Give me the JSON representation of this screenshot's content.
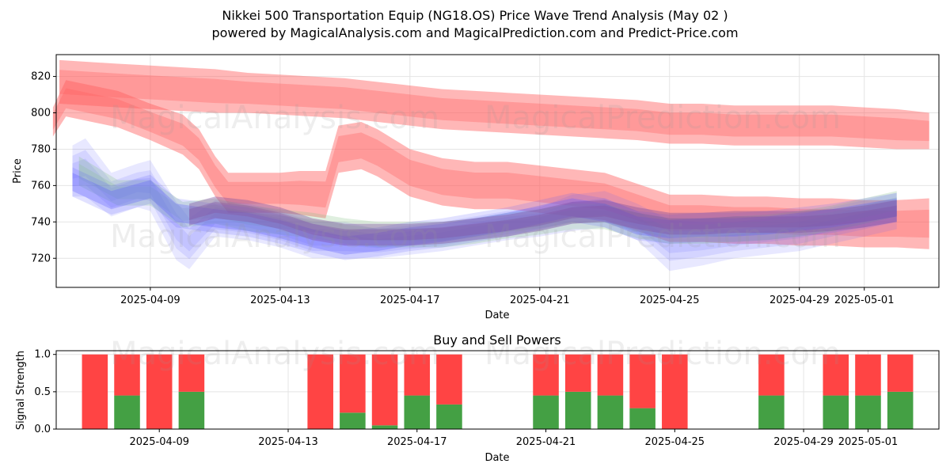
{
  "title_line1": "Nikkei 500 Transportation Equip (NG18.OS) Price Wave Trend Analysis (May 02 )",
  "title_line2": "powered by MagicalAnalysis.com and MagicalPrediction.com and Predict-Price.com",
  "watermarks": [
    "MagicalAnalysis.com",
    "MagicalPrediction.com"
  ],
  "colors": {
    "sell": "#ff4444",
    "buy": "#44a044",
    "blue_band": "#5a5aff",
    "red_band": "#ff6060",
    "green_band": "#7fbf7f",
    "purple_line": "#8050a0"
  },
  "chart_data": [
    {
      "type": "area",
      "title": "",
      "xlabel": "Date",
      "ylabel": "Price",
      "x_range_days": [
        -2.9,
        24.3
      ],
      "x_origin_date": "2025-04-09",
      "ylim": [
        704,
        832
      ],
      "grid": true,
      "x_ticks": [
        {
          "day": 0,
          "label": "2025-04-09"
        },
        {
          "day": 4,
          "label": "2025-04-13"
        },
        {
          "day": 8,
          "label": "2025-04-17"
        },
        {
          "day": 12,
          "label": "2025-04-21"
        },
        {
          "day": 16,
          "label": "2025-04-25"
        },
        {
          "day": 20,
          "label": "2025-04-29"
        },
        {
          "day": 22,
          "label": "2025-05-01"
        }
      ],
      "y_ticks": [
        720,
        740,
        760,
        780,
        800,
        820
      ],
      "red_bands": [
        {
          "name": "upper red band",
          "x": [
            -2.8,
            -1,
            0,
            1,
            2,
            3,
            4,
            5,
            6,
            7,
            8,
            9,
            10,
            11,
            12,
            13,
            14,
            15,
            16,
            17,
            18,
            19,
            20,
            21,
            22,
            23,
            24
          ],
          "center": [
            817,
            815,
            814,
            813,
            812,
            811,
            810,
            809,
            808,
            806,
            804,
            802,
            801,
            800,
            799,
            798,
            797,
            796,
            794,
            794,
            793,
            793,
            793,
            793,
            792,
            791,
            790
          ],
          "half_width": [
            12,
            12,
            12,
            12,
            12,
            11,
            11,
            11,
            11,
            11,
            11,
            11,
            11,
            11,
            11,
            11,
            11,
            11,
            11,
            11,
            11,
            11,
            11,
            11,
            11,
            11,
            10
          ]
        },
        {
          "name": "lower red band",
          "x": [
            -3,
            -2.6,
            -1,
            0,
            1,
            1.5,
            2,
            2.4,
            4,
            4.6,
            5.4,
            5.8,
            6.5,
            7,
            8,
            9,
            10,
            11,
            12,
            13,
            14,
            15,
            16,
            17,
            18,
            19,
            20,
            21,
            22,
            23,
            24
          ],
          "center": [
            795,
            808,
            802,
            795,
            788,
            780,
            765,
            756,
            756,
            756,
            755,
            780,
            782,
            778,
            767,
            762,
            760,
            760,
            758,
            756,
            754,
            748,
            742,
            742,
            741,
            741,
            740,
            740,
            739,
            739,
            739
          ],
          "half_width": [
            8,
            10,
            10,
            10,
            11,
            11,
            11,
            11,
            11,
            12,
            13,
            13,
            13,
            13,
            13,
            13,
            13,
            13,
            13,
            13,
            13,
            13,
            13,
            13,
            13,
            13,
            13,
            13,
            13,
            13,
            14
          ]
        }
      ],
      "blue_bands": [
        {
          "name": "wide blue band",
          "x": [
            -2.4,
            -2,
            -1.2,
            -0.4,
            0,
            0.8,
            1.2,
            2,
            3,
            4,
            5,
            6,
            7,
            8,
            9,
            10,
            11,
            12,
            13,
            14,
            15,
            16,
            17,
            18,
            19,
            20,
            21,
            22,
            23
          ],
          "center": [
            768,
            770,
            755,
            760,
            760,
            735,
            728,
            742,
            740,
            736,
            730,
            730,
            728,
            730,
            732,
            735,
            738,
            740,
            745,
            747,
            740,
            727,
            728,
            730,
            732,
            734,
            738,
            742,
            746
          ],
          "half_width": [
            14,
            16,
            12,
            12,
            14,
            16,
            14,
            10,
            10,
            10,
            10,
            10,
            8,
            8,
            8,
            8,
            8,
            8,
            10,
            10,
            10,
            14,
            12,
            10,
            10,
            10,
            10,
            10,
            10
          ]
        },
        {
          "name": "narrow blue line",
          "x": [
            -2.4,
            -1.2,
            0,
            0.8,
            2,
            3,
            4,
            5,
            6,
            7,
            8,
            9,
            10,
            11,
            12,
            13,
            14,
            15,
            16,
            17,
            18,
            19,
            20,
            21,
            22,
            23
          ],
          "center": [
            762,
            752,
            758,
            745,
            742,
            740,
            736,
            731,
            727,
            729,
            732,
            734,
            737,
            740,
            744,
            748,
            745,
            738,
            736,
            737,
            737,
            738,
            740,
            742,
            745,
            748
          ],
          "half_width": [
            5,
            5,
            5,
            5,
            5,
            5,
            5,
            5,
            5,
            5,
            5,
            5,
            5,
            5,
            5,
            5,
            5,
            5,
            5,
            5,
            5,
            5,
            5,
            5,
            5,
            5
          ]
        }
      ],
      "green_band": {
        "x": [
          -2.2,
          -1,
          0,
          1,
          2,
          3,
          4,
          5,
          6,
          7,
          8,
          9,
          10,
          11,
          12,
          13,
          14,
          15,
          16,
          17,
          18,
          19,
          20,
          21,
          22,
          23
        ],
        "center": [
          768,
          756,
          756,
          744,
          746,
          742,
          740,
          738,
          735,
          733,
          733,
          733,
          735,
          738,
          740,
          743,
          743,
          738,
          735,
          735,
          736,
          737,
          739,
          742,
          746,
          750
        ],
        "half_width": [
          8,
          7,
          7,
          7,
          7,
          7,
          7,
          7,
          7,
          7,
          7,
          7,
          7,
          7,
          7,
          7,
          7,
          7,
          7,
          7,
          7,
          7,
          7,
          7,
          7,
          7
        ]
      },
      "purple_line": {
        "x": [
          1.2,
          2,
          3,
          4,
          5,
          6,
          7,
          8,
          9,
          10,
          11,
          12,
          13,
          14,
          15,
          16,
          17,
          18,
          19,
          20,
          21,
          22,
          23
        ],
        "center": [
          744,
          748,
          746,
          742,
          736,
          733,
          733,
          733,
          734,
          736,
          738,
          741,
          745,
          746,
          742,
          739,
          739,
          740,
          740,
          740,
          741,
          743,
          746
        ],
        "half_width": [
          6,
          6,
          6,
          6,
          6,
          6,
          6,
          6,
          6,
          6,
          6,
          6,
          6,
          6,
          6,
          6,
          6,
          6,
          6,
          6,
          6,
          6,
          6
        ]
      }
    },
    {
      "type": "bar",
      "title": "Buy and Sell Powers",
      "xlabel": "Date",
      "ylabel": "Signal Strength",
      "x_range_days": [
        -3.2,
        24.2
      ],
      "x_origin_date": "2025-04-09",
      "ylim": [
        0,
        1.05
      ],
      "grid": true,
      "y_ticks": [
        0.0,
        0.5,
        1.0
      ],
      "y_tick_labels": [
        "0.0",
        "0.5",
        "1.0"
      ],
      "x_ticks": [
        {
          "day": 0,
          "label": "2025-04-09"
        },
        {
          "day": 4,
          "label": "2025-04-13"
        },
        {
          "day": 8,
          "label": "2025-04-17"
        },
        {
          "day": 12,
          "label": "2025-04-21"
        },
        {
          "day": 16,
          "label": "2025-04-25"
        },
        {
          "day": 20,
          "label": "2025-04-29"
        },
        {
          "day": 22,
          "label": "2025-05-01"
        }
      ],
      "series": [
        {
          "name": "Buy",
          "day": [
            -2,
            -1,
            0,
            1,
            5,
            6,
            7,
            8,
            9,
            12,
            13,
            14,
            15,
            16,
            19,
            21,
            22,
            23
          ],
          "values": [
            0,
            0.45,
            0,
            0.5,
            0,
            0.22,
            0.05,
            0.45,
            0.33,
            0.45,
            0.5,
            0.45,
            0.28,
            0,
            0.45,
            0.45,
            0.45,
            0.5
          ]
        },
        {
          "name": "Sell",
          "day": [
            -2,
            -1,
            0,
            1,
            5,
            6,
            7,
            8,
            9,
            12,
            13,
            14,
            15,
            16,
            19,
            21,
            22,
            23
          ],
          "values": [
            1,
            0.55,
            1,
            0.5,
            1,
            0.78,
            0.95,
            0.55,
            0.67,
            0.55,
            0.5,
            0.55,
            0.72,
            1,
            0.55,
            0.55,
            0.55,
            0.5
          ]
        }
      ]
    }
  ]
}
